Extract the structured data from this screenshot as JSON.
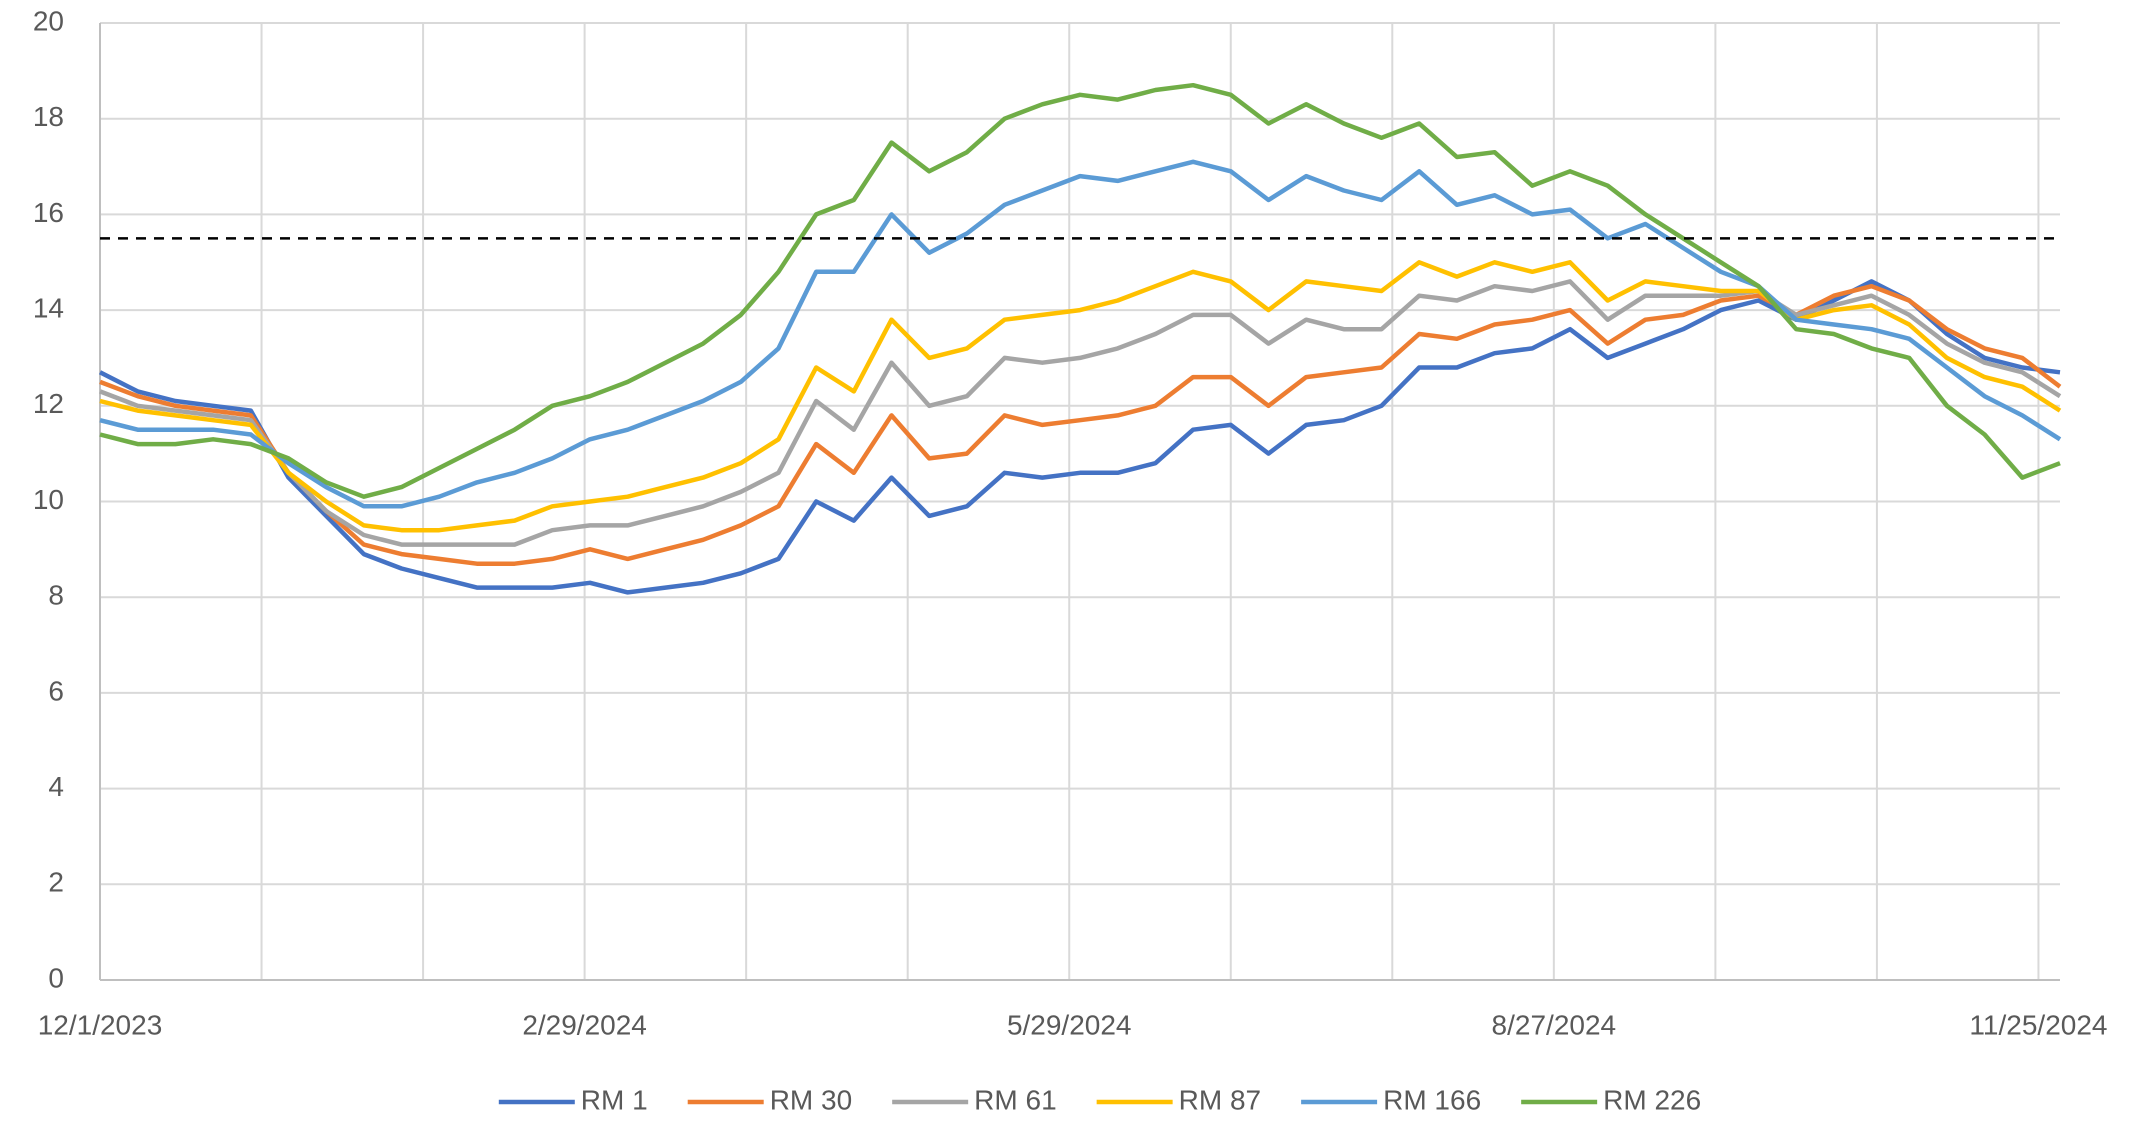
{
  "chart_data": {
    "type": "line",
    "x": [
      "12/1/2023",
      "12/8/2023",
      "12/15/2023",
      "12/22/2023",
      "12/29/2023",
      "1/5/2024",
      "1/12/2024",
      "1/19/2024",
      "1/26/2024",
      "2/2/2024",
      "2/9/2024",
      "2/16/2024",
      "2/23/2024",
      "3/1/2024",
      "3/8/2024",
      "3/15/2024",
      "3/22/2024",
      "3/29/2024",
      "4/5/2024",
      "4/12/2024",
      "4/19/2024",
      "4/26/2024",
      "5/3/2024",
      "5/10/2024",
      "5/17/2024",
      "5/24/2024",
      "5/31/2024",
      "6/7/2024",
      "6/14/2024",
      "6/21/2024",
      "6/28/2024",
      "7/5/2024",
      "7/12/2024",
      "7/19/2024",
      "7/26/2024",
      "8/2/2024",
      "8/9/2024",
      "8/16/2024",
      "8/23/2024",
      "8/30/2024",
      "9/6/2024",
      "9/13/2024",
      "9/20/2024",
      "9/27/2024",
      "10/4/2024",
      "10/11/2024",
      "10/18/2024",
      "10/25/2024",
      "11/1/2024",
      "11/8/2024",
      "11/15/2024",
      "11/22/2024",
      "11/29/2024"
    ],
    "series": [
      {
        "name": "RM 1",
        "color": "#4472c4",
        "values": [
          12.7,
          12.3,
          12.1,
          12.0,
          11.9,
          10.5,
          9.7,
          8.9,
          8.6,
          8.4,
          8.2,
          8.2,
          8.2,
          8.3,
          8.1,
          8.2,
          8.3,
          8.5,
          8.8,
          10.0,
          9.6,
          10.5,
          9.7,
          9.9,
          10.6,
          10.5,
          10.6,
          10.6,
          10.8,
          11.5,
          11.6,
          11.0,
          11.6,
          11.7,
          12.0,
          12.8,
          12.8,
          13.1,
          13.2,
          13.6,
          13.0,
          13.3,
          13.6,
          14.0,
          14.2,
          13.8,
          14.2,
          14.6,
          14.2,
          13.5,
          13.0,
          12.8,
          12.7
        ]
      },
      {
        "name": "RM 30",
        "color": "#ed7d31",
        "values": [
          12.5,
          12.2,
          12.0,
          11.9,
          11.8,
          10.6,
          9.8,
          9.1,
          8.9,
          8.8,
          8.7,
          8.7,
          8.8,
          9.0,
          8.8,
          9.0,
          9.2,
          9.5,
          9.9,
          11.2,
          10.6,
          11.8,
          10.9,
          11.0,
          11.8,
          11.6,
          11.7,
          11.8,
          12.0,
          12.6,
          12.6,
          12.0,
          12.6,
          12.7,
          12.8,
          13.5,
          13.4,
          13.7,
          13.8,
          14.0,
          13.3,
          13.8,
          13.9,
          14.2,
          14.3,
          13.9,
          14.3,
          14.5,
          14.2,
          13.6,
          13.2,
          13.0,
          12.4
        ]
      },
      {
        "name": "RM 61",
        "color": "#a5a5a5",
        "values": [
          12.3,
          12.0,
          11.9,
          11.8,
          11.7,
          10.6,
          9.8,
          9.3,
          9.1,
          9.1,
          9.1,
          9.1,
          9.4,
          9.5,
          9.5,
          9.7,
          9.9,
          10.2,
          10.6,
          12.1,
          11.5,
          12.9,
          12.0,
          12.2,
          13.0,
          12.9,
          13.0,
          13.2,
          13.5,
          13.9,
          13.9,
          13.3,
          13.8,
          13.6,
          13.6,
          14.3,
          14.2,
          14.5,
          14.4,
          14.6,
          13.8,
          14.3,
          14.3,
          14.3,
          14.4,
          13.9,
          14.1,
          14.3,
          13.9,
          13.3,
          12.9,
          12.7,
          12.2
        ]
      },
      {
        "name": "RM 87",
        "color": "#ffc000",
        "values": [
          12.1,
          11.9,
          11.8,
          11.7,
          11.6,
          10.6,
          10.0,
          9.5,
          9.4,
          9.4,
          9.5,
          9.6,
          9.9,
          10.0,
          10.1,
          10.3,
          10.5,
          10.8,
          11.3,
          12.8,
          12.3,
          13.8,
          13.0,
          13.2,
          13.8,
          13.9,
          14.0,
          14.2,
          14.5,
          14.8,
          14.6,
          14.0,
          14.6,
          14.5,
          14.4,
          15.0,
          14.7,
          15.0,
          14.8,
          15.0,
          14.2,
          14.6,
          14.5,
          14.4,
          14.4,
          13.8,
          14.0,
          14.1,
          13.7,
          13.0,
          12.6,
          12.4,
          11.9
        ]
      },
      {
        "name": "RM 166",
        "color": "#5b9bd5",
        "values": [
          11.7,
          11.5,
          11.5,
          11.5,
          11.4,
          10.8,
          10.3,
          9.9,
          9.9,
          10.1,
          10.4,
          10.6,
          10.9,
          11.3,
          11.5,
          11.8,
          12.1,
          12.5,
          13.2,
          14.8,
          14.8,
          16.0,
          15.2,
          15.6,
          16.2,
          16.5,
          16.8,
          16.7,
          16.9,
          17.1,
          16.9,
          16.3,
          16.8,
          16.5,
          16.3,
          16.9,
          16.2,
          16.4,
          16.0,
          16.1,
          15.5,
          15.8,
          15.3,
          14.8,
          14.5,
          13.8,
          13.7,
          13.6,
          13.4,
          12.8,
          12.2,
          11.8,
          11.3
        ]
      },
      {
        "name": "RM 226",
        "color": "#70ad47",
        "values": [
          11.4,
          11.2,
          11.2,
          11.3,
          11.2,
          10.9,
          10.4,
          10.1,
          10.3,
          10.7,
          11.1,
          11.5,
          12.0,
          12.2,
          12.5,
          12.9,
          13.3,
          13.9,
          14.8,
          16.0,
          16.3,
          17.5,
          16.9,
          17.3,
          18.0,
          18.3,
          18.5,
          18.4,
          18.6,
          18.7,
          18.5,
          17.9,
          18.3,
          17.9,
          17.6,
          17.9,
          17.2,
          17.3,
          16.6,
          16.9,
          16.6,
          16.0,
          15.5,
          15.0,
          14.5,
          13.6,
          13.5,
          13.2,
          13.0,
          12.0,
          11.4,
          10.5,
          10.8
        ]
      }
    ],
    "xlim": [
      "12/1/2023",
      "11/29/2024"
    ],
    "xticks": [
      "12/1/2023",
      {
        "value": "12/31/2023",
        "label": null
      },
      {
        "value": "1/30/2024",
        "label": null
      },
      "2/29/2024",
      {
        "value": "3/30/2024",
        "label": null
      },
      {
        "value": "4/29/2024",
        "label": null
      },
      "5/29/2024",
      {
        "value": "6/28/2024",
        "label": null
      },
      {
        "value": "7/28/2024",
        "label": null
      },
      "8/27/2024",
      {
        "value": "9/26/2024",
        "label": null
      },
      {
        "value": "10/26/2024",
        "label": null
      },
      "11/25/2024"
    ],
    "ylim": [
      0,
      20
    ],
    "yticks": [
      0,
      2,
      4,
      6,
      8,
      10,
      12,
      14,
      16,
      18,
      20
    ],
    "grid": true,
    "reference_line": {
      "value": 15.5,
      "color": "#000000",
      "style": "dashed"
    },
    "legend": "bottom"
  }
}
